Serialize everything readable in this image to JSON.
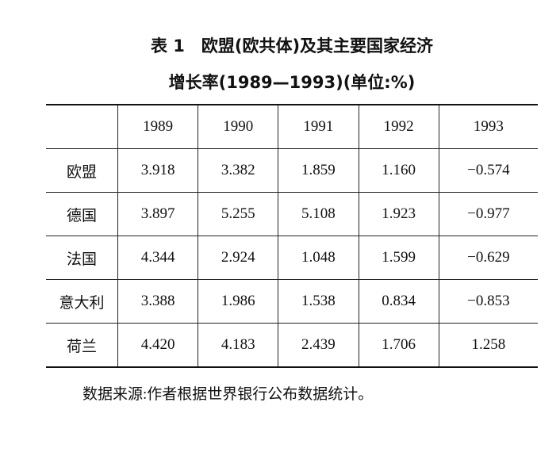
{
  "title": {
    "line1": "表 1　欧盟(欧共体)及其主要国家经济",
    "line2": "增长率(1989—1993)(单位:%)"
  },
  "table": {
    "header": [
      "1989",
      "1990",
      "1991",
      "1992",
      "1993"
    ],
    "rows": [
      {
        "label": "欧盟",
        "cells": [
          "3.918",
          "3.382",
          "1.859",
          "1.160",
          "−0.574"
        ]
      },
      {
        "label": "德国",
        "cells": [
          "3.897",
          "5.255",
          "5.108",
          "1.923",
          "−0.977"
        ]
      },
      {
        "label": "法国",
        "cells": [
          "4.344",
          "2.924",
          "1.048",
          "1.599",
          "−0.629"
        ]
      },
      {
        "label": "意大利",
        "cells": [
          "3.388",
          "1.986",
          "1.538",
          "0.834",
          "−0.853"
        ]
      },
      {
        "label": "荷兰",
        "cells": [
          "4.420",
          "4.183",
          "2.439",
          "1.706",
          "1.258"
        ]
      }
    ]
  },
  "note": "数据来源:作者根据世界银行公布数据统计。"
}
